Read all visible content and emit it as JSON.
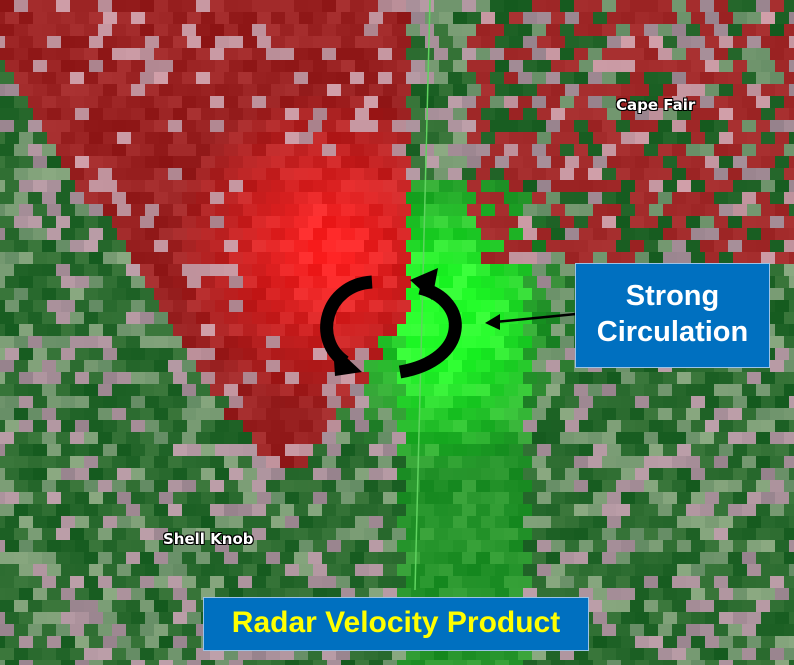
{
  "map": {
    "places": [
      "Cape Fair",
      "Shell Knob"
    ]
  },
  "annotations": {
    "callout": [
      "Strong",
      "Circulation"
    ],
    "caption": "Radar Velocity Product"
  }
}
